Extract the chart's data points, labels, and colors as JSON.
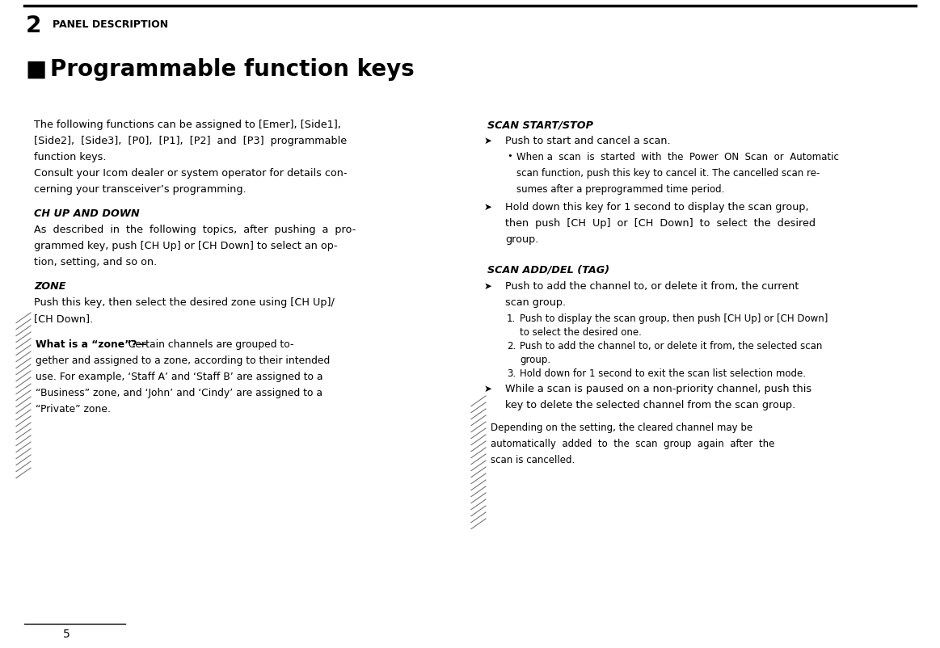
{
  "bg_color": "#ffffff",
  "text_color": "#000000",
  "page_num": "5",
  "chapter_num": "2",
  "chapter_title": "PANEL DESCRIPTION",
  "section_title": "Programmable function keys",
  "intro_lines": [
    "The following functions can be assigned to [Emer], [Side1],",
    "[Side2],  [Side3],  [P0],  [P1],  [P2]  and  [P3]  programmable",
    "function keys.",
    "Consult your Icom dealer or system operator for details con-",
    "cerning your transceiver’s programming."
  ],
  "ch_heading": "CH UP AND DOWN",
  "ch_lines": [
    "As  described  in  the  following  topics,  after  pushing  a  pro-",
    "grammed key, push [CH Up] or [CH Down] to select an op-",
    "tion, setting, and so on."
  ],
  "zone_heading": "ZONE",
  "zone_lines": [
    "Push this key, then select the desired zone using [CH Up]/",
    "[CH Down]."
  ],
  "note1_lines": [
    "What is a “zone”?—  Certain channels are grouped to-",
    "gether and assigned to a zone, according to their intended",
    "use. For example, ‘Staff A’ and ‘Staff B’ are assigned to a",
    "“Business” zone, and ‘John’ and ‘Cindy’ are assigned to a",
    "“Private” zone."
  ],
  "note1_bold_prefix": "What is a “zone”?—",
  "scan_heading": "SCAN START/STOP",
  "scan_bullet1": "Push to start and cancel a scan.",
  "scan_sub_lines": [
    "When a  scan  is  started  with  the  Power  ON  Scan  or  Automatic",
    "scan function, push this key to cancel it. The cancelled scan re-",
    "sumes after a preprogrammed time period."
  ],
  "scan_bullet2_lines": [
    "Hold down this key for 1 second to display the scan group,",
    "then  push  [CH  Up]  or  [CH  Down]  to  select  the  desired",
    "group."
  ],
  "add_heading": "SCAN ADD/DEL (TAG)",
  "add_bullet1_lines": [
    "Push to add the channel to, or delete it from, the current",
    "scan group."
  ],
  "add_numbered": [
    [
      "1.",
      "Push to display the scan group, then push [CH Up] or [CH Down]",
      "to select the desired one."
    ],
    [
      "2.",
      "Push to add the channel to, or delete it from, the selected scan",
      "group."
    ],
    [
      "3.",
      "Hold down for 1 second to exit the scan list selection mode.",
      ""
    ]
  ],
  "add_bullet2_lines": [
    "While a scan is paused on a non-priority channel, push this",
    "key to delete the selected channel from the scan group."
  ],
  "note2_lines": [
    "Depending on the setting, the cleared channel may be",
    "automatically  added  to  the  scan  group  again  after  the",
    "scan is cancelled."
  ]
}
